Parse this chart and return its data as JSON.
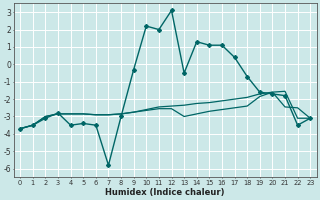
{
  "xlabel": "Humidex (Indice chaleur)",
  "background_color": "#cce8e8",
  "grid_color": "#aacccc",
  "line_color": "#006666",
  "xlim": [
    -0.5,
    23.5
  ],
  "ylim": [
    -6.5,
    3.5
  ],
  "xticks": [
    0,
    1,
    2,
    3,
    4,
    5,
    6,
    7,
    8,
    9,
    10,
    11,
    12,
    13,
    14,
    15,
    16,
    17,
    18,
    19,
    20,
    21,
    22,
    23
  ],
  "yticks": [
    -6,
    -5,
    -4,
    -3,
    -2,
    -1,
    0,
    1,
    2,
    3
  ],
  "curve1_x": [
    0,
    1,
    2,
    3,
    4,
    5,
    6,
    7,
    8,
    9,
    10,
    11,
    12,
    13,
    14,
    15,
    16,
    17,
    18,
    19,
    20,
    21,
    22,
    23
  ],
  "curve1_y": [
    -3.7,
    -3.5,
    -3.1,
    -2.8,
    -3.5,
    -3.4,
    -3.5,
    -5.8,
    -3.0,
    -0.3,
    2.2,
    2.0,
    3.1,
    -0.5,
    1.3,
    1.1,
    1.1,
    0.4,
    -0.7,
    -1.6,
    -1.7,
    -1.8,
    -3.5,
    -3.1
  ],
  "curve2_x": [
    0,
    1,
    2,
    3,
    4,
    5,
    6,
    7,
    8,
    9,
    10,
    11,
    12,
    13,
    14,
    15,
    16,
    17,
    18,
    19,
    20,
    21,
    22,
    23
  ],
  "curve2_y": [
    -3.7,
    -3.5,
    -3.0,
    -2.85,
    -2.85,
    -2.85,
    -2.9,
    -2.9,
    -2.85,
    -2.75,
    -2.65,
    -2.55,
    -2.55,
    -3.0,
    -2.85,
    -2.7,
    -2.6,
    -2.5,
    -2.4,
    -1.85,
    -1.6,
    -1.55,
    -3.1,
    -3.1
  ],
  "curve3_x": [
    0,
    1,
    2,
    3,
    4,
    5,
    6,
    7,
    8,
    9,
    10,
    11,
    12,
    13,
    14,
    15,
    16,
    17,
    18,
    19,
    20,
    21,
    22,
    23
  ],
  "curve3_y": [
    -3.7,
    -3.5,
    -3.0,
    -2.85,
    -2.85,
    -2.85,
    -2.9,
    -2.9,
    -2.85,
    -2.75,
    -2.6,
    -2.45,
    -2.4,
    -2.35,
    -2.25,
    -2.2,
    -2.1,
    -2.0,
    -1.9,
    -1.7,
    -1.6,
    -2.45,
    -2.5,
    -3.1
  ]
}
